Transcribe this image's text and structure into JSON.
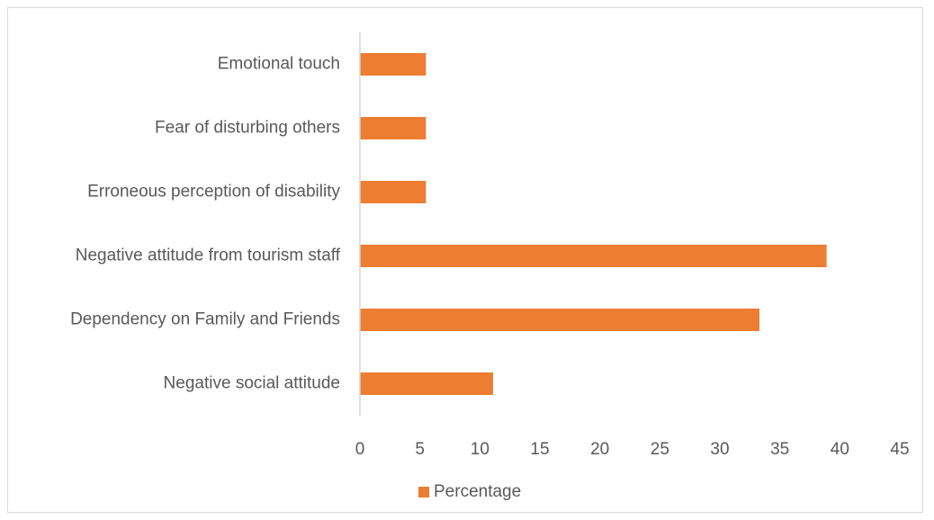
{
  "chart_data": {
    "type": "bar",
    "orientation": "horizontal",
    "categories": [
      "Emotional touch",
      "Fear of disturbing others",
      "Erroneous perception of disability",
      "Negative attitude from tourism staff",
      "Dependency on Family and Friends",
      "Negative social attitude"
    ],
    "series": [
      {
        "name": "Percentage",
        "values": [
          5.5,
          5.5,
          5.5,
          38.9,
          33.3,
          11.1
        ]
      }
    ],
    "xlim": [
      0,
      45
    ],
    "x_ticks": [
      "0",
      "5",
      "10",
      "15",
      "20",
      "25",
      "30",
      "35",
      "40",
      "45"
    ],
    "title": "",
    "xlabel": "",
    "ylabel": "",
    "grid": false,
    "legend_position": "bottom",
    "bar_color": "#ED7D31",
    "axis_color": "#d9d9d9"
  }
}
